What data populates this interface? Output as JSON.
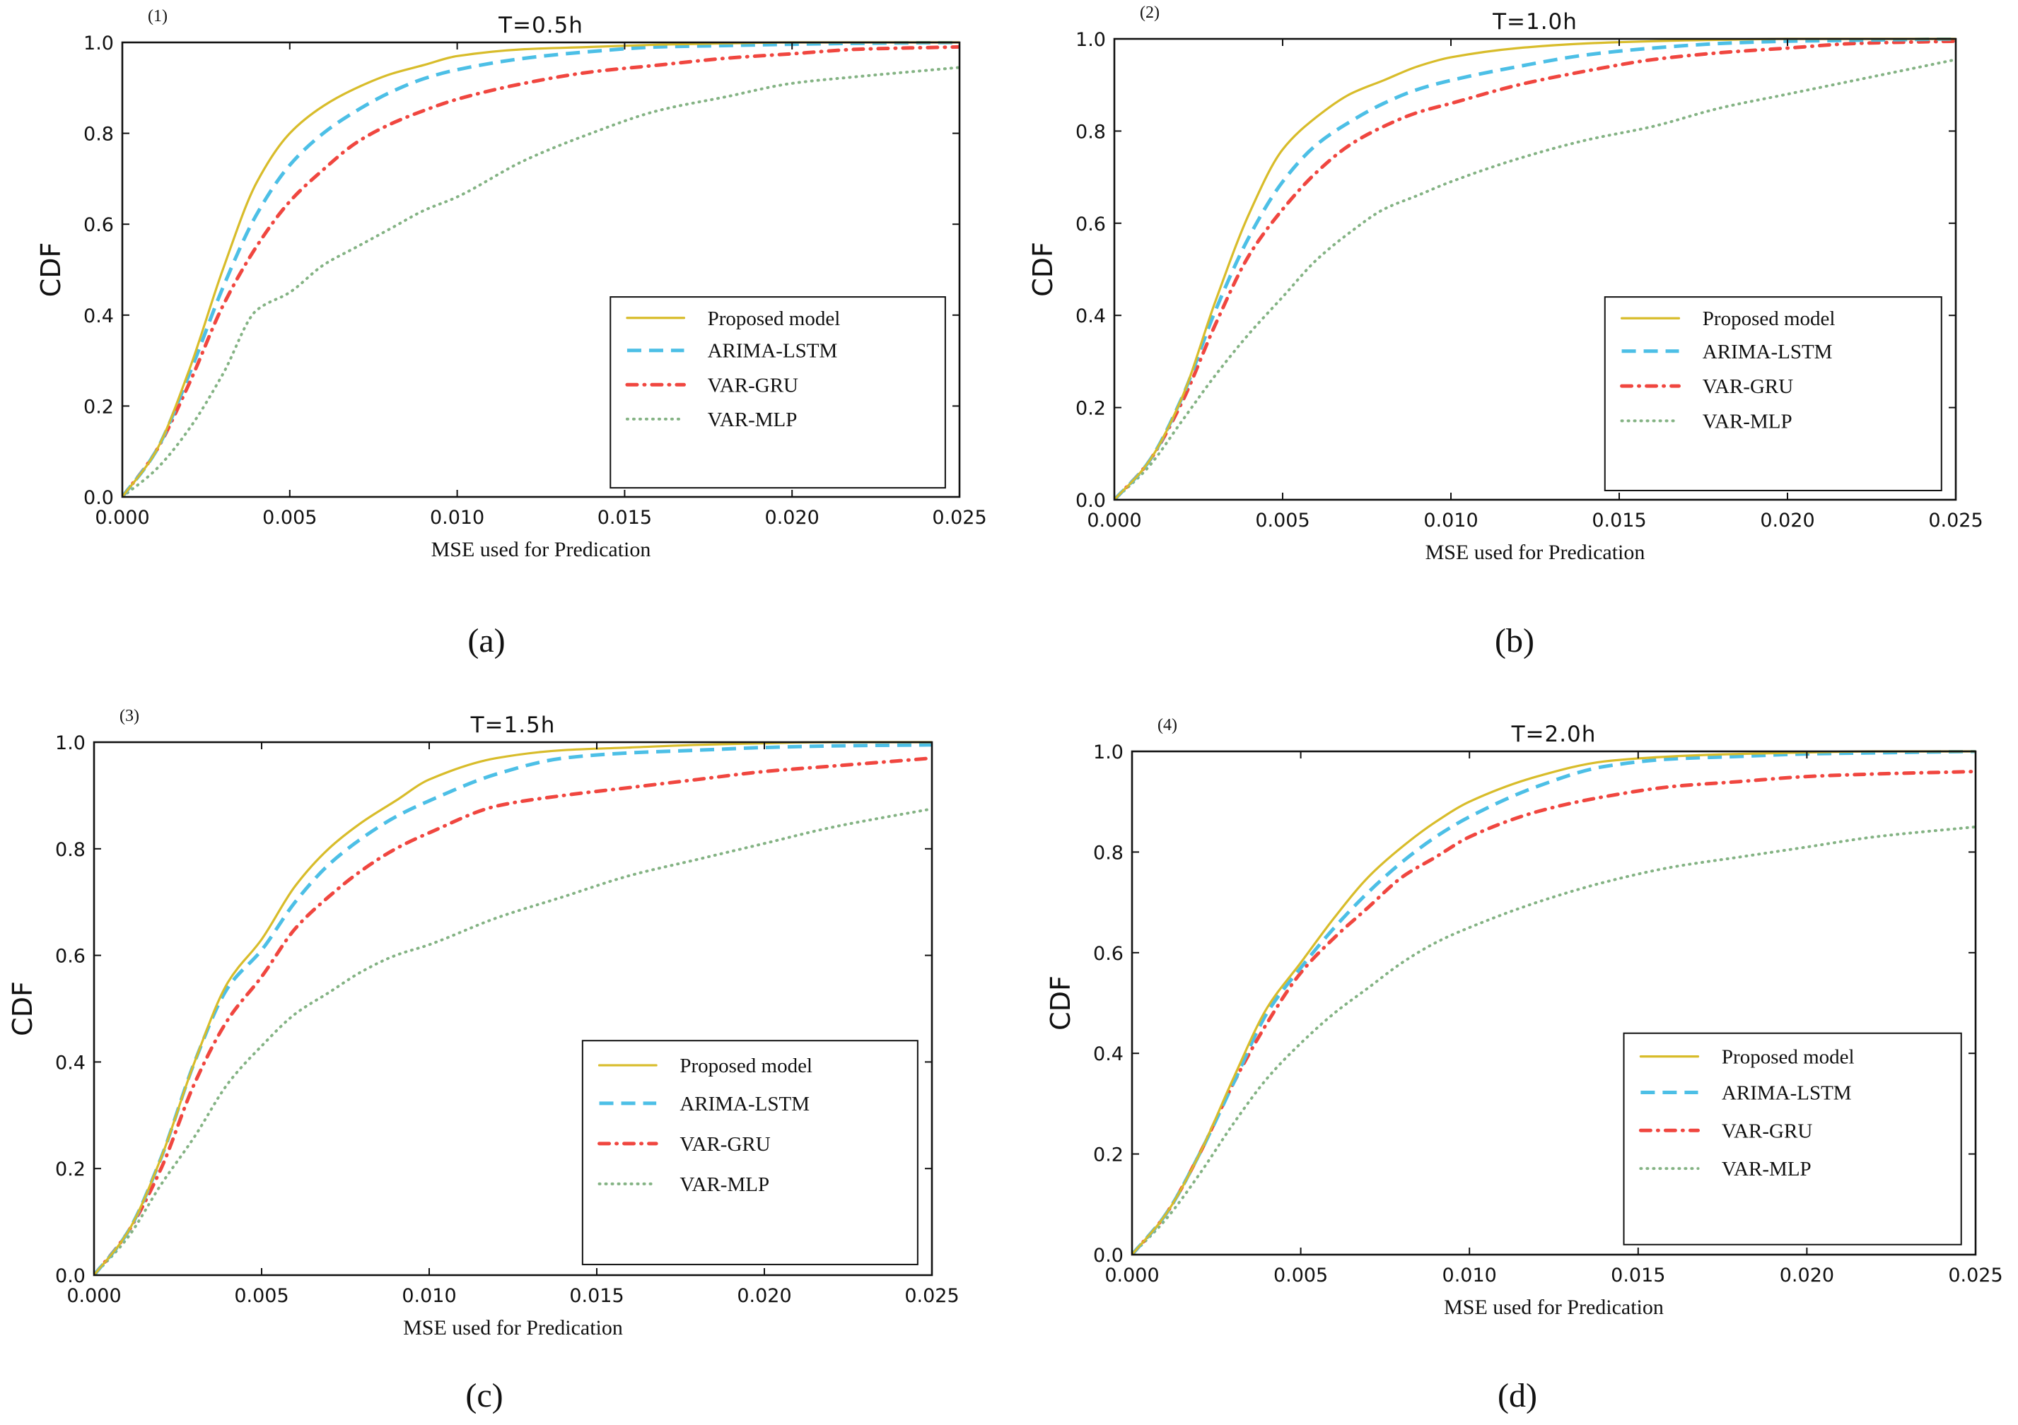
{
  "chart_data": [
    {
      "type": "line",
      "panel_label": "(1)",
      "title": "T=0.5h",
      "caption": "(a)",
      "xlabel": "MSE used for Predication",
      "ylabel": "CDF",
      "xlim": [
        0,
        0.025
      ],
      "ylim": [
        0,
        1.0
      ],
      "xticks": [
        "0.000",
        "0.005",
        "0.010",
        "0.015",
        "0.020",
        "0.025"
      ],
      "yticks": [
        "0.0",
        "0.2",
        "0.4",
        "0.6",
        "0.8",
        "1.0"
      ],
      "grid": false,
      "legend_position": "lower-right",
      "x": [
        0,
        0.001,
        0.002,
        0.003,
        0.004,
        0.005,
        0.006,
        0.007,
        0.008,
        0.009,
        0.01,
        0.012,
        0.014,
        0.016,
        0.018,
        0.02,
        0.022,
        0.025
      ],
      "series": [
        {
          "name": "Proposed model",
          "style": "solid",
          "color": "#d8bc2a",
          "values": [
            0.0,
            0.1,
            0.28,
            0.5,
            0.69,
            0.8,
            0.86,
            0.9,
            0.93,
            0.95,
            0.97,
            0.985,
            0.99,
            0.995,
            0.998,
            1.0,
            1.0,
            1.0
          ]
        },
        {
          "name": "ARIMA-LSTM",
          "style": "dashed",
          "color": "#4cbfe6",
          "values": [
            0.0,
            0.1,
            0.27,
            0.46,
            0.62,
            0.73,
            0.8,
            0.85,
            0.89,
            0.92,
            0.94,
            0.965,
            0.98,
            0.99,
            0.993,
            0.996,
            0.998,
            1.0
          ]
        },
        {
          "name": "VAR-GRU",
          "style": "dash-dot",
          "color": "#f0463f",
          "values": [
            0.0,
            0.1,
            0.25,
            0.42,
            0.55,
            0.65,
            0.72,
            0.78,
            0.82,
            0.85,
            0.875,
            0.91,
            0.935,
            0.95,
            0.965,
            0.975,
            0.985,
            0.99
          ]
        },
        {
          "name": "VAR-MLP",
          "style": "dotted",
          "color": "#84b384",
          "values": [
            0.0,
            0.06,
            0.15,
            0.27,
            0.41,
            0.45,
            0.51,
            0.55,
            0.59,
            0.63,
            0.66,
            0.74,
            0.8,
            0.85,
            0.88,
            0.91,
            0.925,
            0.945
          ]
        }
      ]
    },
    {
      "type": "line",
      "panel_label": "(2)",
      "title": "T=1.0h",
      "caption": "(b)",
      "xlabel": "MSE used for Predication",
      "ylabel": "CDF",
      "xlim": [
        0,
        0.025
      ],
      "ylim": [
        0,
        1.0
      ],
      "xticks": [
        "0.000",
        "0.005",
        "0.010",
        "0.015",
        "0.020",
        "0.025"
      ],
      "yticks": [
        "0.0",
        "0.2",
        "0.4",
        "0.6",
        "0.8",
        "1.0"
      ],
      "grid": false,
      "legend_position": "lower-right",
      "x": [
        0,
        0.001,
        0.002,
        0.003,
        0.004,
        0.005,
        0.006,
        0.007,
        0.008,
        0.009,
        0.01,
        0.012,
        0.014,
        0.016,
        0.018,
        0.02,
        0.022,
        0.025
      ],
      "series": [
        {
          "name": "Proposed model",
          "style": "solid",
          "color": "#d8bc2a",
          "values": [
            0.0,
            0.08,
            0.22,
            0.43,
            0.62,
            0.76,
            0.83,
            0.88,
            0.91,
            0.94,
            0.96,
            0.98,
            0.99,
            0.995,
            0.998,
            1.0,
            1.0,
            1.0
          ]
        },
        {
          "name": "ARIMA-LSTM",
          "style": "dashed",
          "color": "#4cbfe6",
          "values": [
            0.0,
            0.08,
            0.22,
            0.41,
            0.57,
            0.69,
            0.77,
            0.82,
            0.86,
            0.89,
            0.91,
            0.94,
            0.965,
            0.98,
            0.99,
            0.995,
            0.997,
            1.0
          ]
        },
        {
          "name": "VAR-GRU",
          "style": "dash-dot",
          "color": "#f0463f",
          "values": [
            0.0,
            0.08,
            0.21,
            0.38,
            0.53,
            0.63,
            0.71,
            0.77,
            0.81,
            0.84,
            0.86,
            0.9,
            0.93,
            0.955,
            0.97,
            0.98,
            0.99,
            0.995
          ]
        },
        {
          "name": "VAR-MLP",
          "style": "dotted",
          "color": "#84b384",
          "values": [
            0.0,
            0.07,
            0.17,
            0.27,
            0.36,
            0.44,
            0.52,
            0.58,
            0.63,
            0.66,
            0.69,
            0.74,
            0.78,
            0.81,
            0.85,
            0.88,
            0.91,
            0.955
          ]
        }
      ]
    },
    {
      "type": "line",
      "panel_label": "(3)",
      "title": "T=1.5h",
      "caption": "(c)",
      "xlabel": "MSE used for Predication",
      "ylabel": "CDF",
      "xlim": [
        0,
        0.025
      ],
      "ylim": [
        0,
        1.0
      ],
      "xticks": [
        "0.000",
        "0.005",
        "0.010",
        "0.015",
        "0.020",
        "0.025"
      ],
      "yticks": [
        "0.0",
        "0.2",
        "0.4",
        "0.6",
        "0.8",
        "1.0"
      ],
      "grid": false,
      "legend_position": "lower-right",
      "x": [
        0,
        0.001,
        0.002,
        0.003,
        0.004,
        0.005,
        0.006,
        0.007,
        0.008,
        0.009,
        0.01,
        0.012,
        0.014,
        0.016,
        0.018,
        0.02,
        0.022,
        0.025
      ],
      "series": [
        {
          "name": "Proposed model",
          "style": "solid",
          "color": "#d8bc2a",
          "values": [
            0.0,
            0.08,
            0.22,
            0.4,
            0.55,
            0.63,
            0.73,
            0.8,
            0.85,
            0.89,
            0.93,
            0.97,
            0.985,
            0.99,
            0.995,
            0.998,
            1.0,
            1.0
          ]
        },
        {
          "name": "ARIMA-LSTM",
          "style": "dashed",
          "color": "#4cbfe6",
          "values": [
            0.0,
            0.08,
            0.22,
            0.4,
            0.54,
            0.61,
            0.7,
            0.77,
            0.82,
            0.86,
            0.89,
            0.94,
            0.97,
            0.98,
            0.985,
            0.99,
            0.993,
            0.995
          ]
        },
        {
          "name": "VAR-GRU",
          "style": "dash-dot",
          "color": "#f0463f",
          "values": [
            0.0,
            0.08,
            0.2,
            0.36,
            0.48,
            0.56,
            0.65,
            0.71,
            0.76,
            0.8,
            0.83,
            0.88,
            0.9,
            0.915,
            0.93,
            0.945,
            0.955,
            0.97
          ]
        },
        {
          "name": "VAR-MLP",
          "style": "dotted",
          "color": "#84b384",
          "values": [
            0.0,
            0.07,
            0.17,
            0.26,
            0.36,
            0.43,
            0.49,
            0.53,
            0.57,
            0.6,
            0.62,
            0.67,
            0.71,
            0.75,
            0.78,
            0.81,
            0.84,
            0.875
          ]
        }
      ]
    },
    {
      "type": "line",
      "panel_label": "(4)",
      "title": "T=2.0h",
      "caption": "(d)",
      "xlabel": "MSE used for Predication",
      "ylabel": "CDF",
      "xlim": [
        0,
        0.025
      ],
      "ylim": [
        0,
        1.0
      ],
      "xticks": [
        "0.000",
        "0.005",
        "0.010",
        "0.015",
        "0.020",
        "0.025"
      ],
      "yticks": [
        "0.0",
        "0.2",
        "0.4",
        "0.6",
        "0.8",
        "1.0"
      ],
      "grid": false,
      "legend_position": "lower-right",
      "x": [
        0,
        0.001,
        0.002,
        0.003,
        0.004,
        0.005,
        0.006,
        0.007,
        0.008,
        0.009,
        0.01,
        0.012,
        0.014,
        0.016,
        0.018,
        0.02,
        0.022,
        0.025
      ],
      "series": [
        {
          "name": "Proposed model",
          "style": "solid",
          "color": "#d8bc2a",
          "values": [
            0.0,
            0.08,
            0.2,
            0.35,
            0.49,
            0.58,
            0.67,
            0.75,
            0.81,
            0.86,
            0.9,
            0.95,
            0.98,
            0.99,
            0.995,
            0.998,
            1.0,
            1.0
          ]
        },
        {
          "name": "ARIMA-LSTM",
          "style": "dashed",
          "color": "#4cbfe6",
          "values": [
            0.0,
            0.08,
            0.2,
            0.34,
            0.48,
            0.57,
            0.65,
            0.72,
            0.78,
            0.83,
            0.87,
            0.93,
            0.97,
            0.985,
            0.99,
            0.995,
            0.997,
            1.0
          ]
        },
        {
          "name": "VAR-GRU",
          "style": "dash-dot",
          "color": "#f0463f",
          "values": [
            0.0,
            0.08,
            0.2,
            0.34,
            0.46,
            0.56,
            0.63,
            0.69,
            0.75,
            0.79,
            0.83,
            0.88,
            0.91,
            0.93,
            0.94,
            0.95,
            0.955,
            0.96
          ]
        },
        {
          "name": "VAR-MLP",
          "style": "dotted",
          "color": "#84b384",
          "values": [
            0.0,
            0.07,
            0.16,
            0.26,
            0.35,
            0.42,
            0.48,
            0.53,
            0.58,
            0.62,
            0.65,
            0.7,
            0.74,
            0.77,
            0.79,
            0.81,
            0.83,
            0.85
          ]
        }
      ]
    }
  ]
}
